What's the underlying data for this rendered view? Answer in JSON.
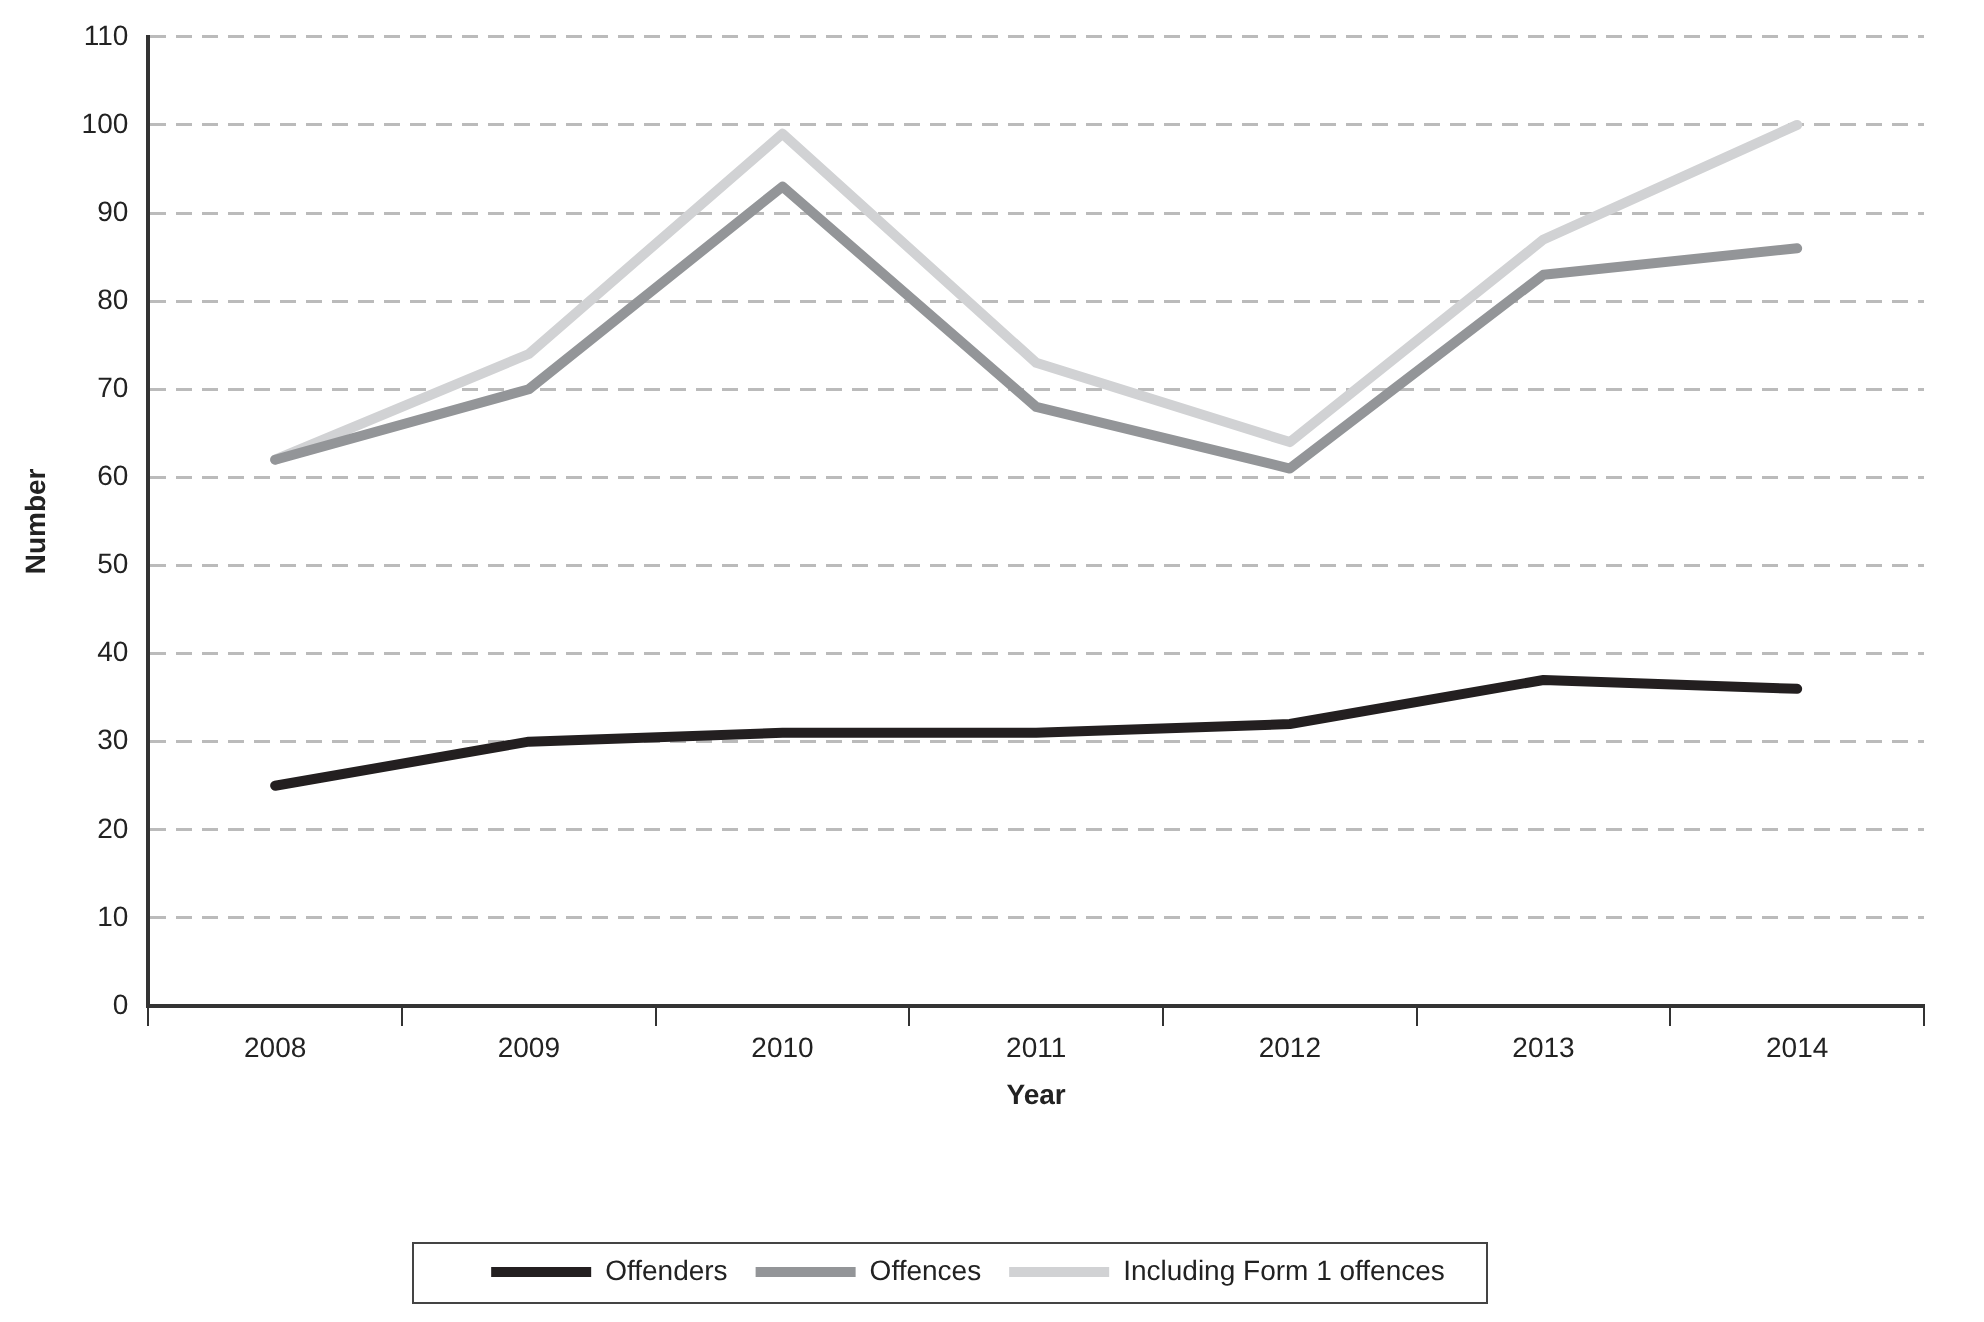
{
  "chart_data": {
    "type": "line",
    "xlabel": "Year",
    "ylabel": "Number",
    "categories": [
      "2008",
      "2009",
      "2010",
      "2011",
      "2012",
      "2013",
      "2014"
    ],
    "series": [
      {
        "name": "Offenders",
        "color": "#231f20",
        "values": [
          25,
          30,
          31,
          31,
          32,
          37,
          36
        ]
      },
      {
        "name": "Offences",
        "color": "#939598",
        "values": [
          62,
          70,
          93,
          68,
          61,
          83,
          86
        ]
      },
      {
        "name": "Including Form 1 offences",
        "color": "#d1d2d4",
        "values": [
          62,
          74,
          99,
          73,
          64,
          87,
          100
        ]
      }
    ],
    "ylim": [
      0,
      110
    ],
    "yticks": [
      0,
      10,
      20,
      30,
      40,
      50,
      60,
      70,
      80,
      90,
      100,
      110
    ],
    "grid": "y",
    "legend": "bottom",
    "marker": "none",
    "line_style": "solid"
  }
}
